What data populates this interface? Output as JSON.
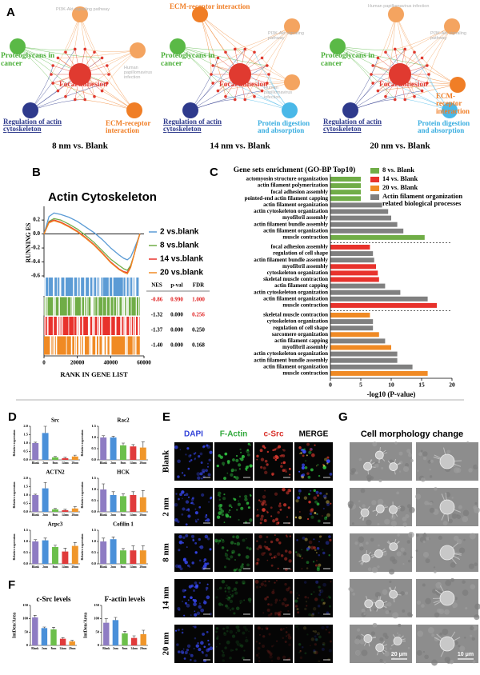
{
  "panel_labels": [
    "A",
    "B",
    "C",
    "D",
    "E",
    "F",
    "G"
  ],
  "network_panels": [
    {
      "caption": "8 nm vs. Blank",
      "nodes": [
        {
          "label": "PI3K-Akt signaling pathway",
          "color": "#b0b0b0",
          "circle_color": "#f4a460"
        },
        {
          "label": "Proteoglycans in cancer",
          "color": "#4caf3a",
          "circle_color": "#5ab946"
        },
        {
          "label": "Human papillomavirus infection",
          "color": "#b0b0b0",
          "circle_color": "#f4a460"
        },
        {
          "label": "Focal adhesion",
          "color": "#e03a30",
          "circle_color": "#e03a30"
        },
        {
          "label": "Regulation of actin cytoskeleton",
          "color": "#2e3a8c",
          "circle_color": "#2e3a8c"
        },
        {
          "label": "ECM-receptor interaction",
          "color": "#f07e26",
          "circle_color": "#f07e26"
        }
      ]
    },
    {
      "caption": "14 nm vs. Blank",
      "nodes": [
        {
          "label": "ECM-receptor interaction",
          "color": "#f07e26",
          "circle_color": "#f07e26"
        },
        {
          "label": "PI3K-Akt signaling pathway",
          "color": "#b0b0b0",
          "circle_color": "#f4a460"
        },
        {
          "label": "Proteoglycans in cancer",
          "color": "#4caf3a",
          "circle_color": "#5ab946"
        },
        {
          "label": "Focal adhesion",
          "color": "#e03a30",
          "circle_color": "#e03a30"
        },
        {
          "label": "Human papillomavirus infection",
          "color": "#b0b0b0",
          "circle_color": "#f4a460"
        },
        {
          "label": "Regulation of actin cytoskeleton",
          "color": "#2e3a8c",
          "circle_color": "#2e3a8c"
        },
        {
          "label": "Protein digestion and absorption",
          "color": "#3aaee0",
          "circle_color": "#4ab8e8"
        }
      ]
    },
    {
      "caption": "20 nm vs. Blank",
      "nodes": [
        {
          "label": "Human papillomavirus infection",
          "color": "#b0b0b0",
          "circle_color": "#f4a460"
        },
        {
          "label": "PI3K-Akt signaling pathway",
          "color": "#b0b0b0",
          "circle_color": "#f4a460"
        },
        {
          "label": "Proteoglycans in cancer",
          "color": "#4caf3a",
          "circle_color": "#5ab946"
        },
        {
          "label": "Focal adhesion",
          "color": "#e03a30",
          "circle_color": "#e03a30"
        },
        {
          "label": "ECM-receptor interaction",
          "color": "#f07e26",
          "circle_color": "#f07e26"
        },
        {
          "label": "Regulation of actin cytoskeleton",
          "color": "#2e3a8c",
          "circle_color": "#2e3a8c"
        },
        {
          "label": "Protein digestion and absorption",
          "color": "#3aaee0",
          "circle_color": "#4ab8e8"
        }
      ]
    }
  ],
  "chart_data": [
    {
      "type": "line",
      "title": "Actin Cytoskeleton",
      "y_label": "RUNNING ES",
      "x_label": "RANK IN GENE LIST",
      "x": [
        0,
        3000,
        6000,
        10000,
        15000,
        20000,
        25000,
        30000,
        35000,
        40000,
        45000,
        48000,
        50000,
        52000,
        54000,
        56000,
        57500
      ],
      "series": [
        {
          "name": "2 vs.blank",
          "color": "#5b9bd5",
          "values": [
            0,
            0.25,
            0.3,
            0.28,
            0.24,
            0.18,
            0.1,
            0.02,
            -0.08,
            -0.2,
            -0.3,
            -0.35,
            -0.37,
            -0.33,
            -0.22,
            -0.1,
            0
          ]
        },
        {
          "name": "8 vs.blank",
          "color": "#70ad47",
          "values": [
            0,
            0.18,
            0.22,
            0.2,
            0.14,
            0.07,
            -0.02,
            -0.12,
            -0.24,
            -0.36,
            -0.45,
            -0.5,
            -0.52,
            -0.45,
            -0.3,
            -0.12,
            0
          ]
        },
        {
          "name": "14 vs.blank",
          "color": "#e8322c",
          "values": [
            0,
            0.17,
            0.2,
            0.17,
            0.11,
            0.04,
            -0.05,
            -0.15,
            -0.27,
            -0.4,
            -0.5,
            -0.54,
            -0.55,
            -0.47,
            -0.3,
            -0.12,
            0
          ]
        },
        {
          "name": "20 vs.blank",
          "color": "#f08a24",
          "values": [
            0,
            0.16,
            0.19,
            0.16,
            0.1,
            0.03,
            -0.06,
            -0.16,
            -0.28,
            -0.41,
            -0.51,
            -0.55,
            -0.57,
            -0.48,
            -0.3,
            -0.12,
            0
          ]
        }
      ],
      "xlim": [
        0,
        60000
      ],
      "xticks": [
        0,
        20000,
        40000,
        60000
      ],
      "ylim": [
        -0.6,
        0.35
      ],
      "yticks": [
        -0.6,
        -0.4,
        -0.2,
        {
          "value": 0,
          "label": "0.0"
        },
        0.2
      ]
    },
    {
      "type": "hbar",
      "title": "Gene sets enrichment (GO-BP Top10)",
      "x_label": "-log10 (P-value)",
      "legend": [
        {
          "name": "8 vs. Blank",
          "color": "#70ad47"
        },
        {
          "name": "14 vs. Blank",
          "color": "#e8322c"
        },
        {
          "name": "20 vs. Blank",
          "color": "#f08a24"
        },
        {
          "name": "Actin filament organization related biological processes",
          "color": "#808080"
        }
      ],
      "categories": [
        "actomyosin structure organization",
        "actin filament polymerization",
        "focal adhesion assembly",
        "pointed-end actin filament capping",
        "actin filament organization",
        "actin cytoskeleton organization",
        "myofibril assembly",
        "actin filament bundle assembly",
        "actin filament organization",
        "muscle contraction",
        "focal adhesion assembly",
        "regulation of cell shape",
        "actin filament bundle assembly",
        "myofibril assembly",
        "cytoskeleton organization",
        "skeletal muscle contraction",
        "actin filament capping",
        "actin cytoskeleton organization",
        "actin filament organization",
        "muscle contraction",
        "skeletal muscle contraction",
        "cytoskeleton organization",
        "regulation of cell shape",
        "sarcomere organization",
        "actin filament capping",
        "myofibril assembly",
        "actin cytoskeleton organization",
        "actin filament bundle assembly",
        "actin filament organization",
        "muscle contraction"
      ],
      "values": [
        5,
        5,
        5,
        5,
        8.5,
        9.5,
        10,
        11,
        12,
        15.5,
        6.5,
        7,
        7.2,
        7.5,
        7.8,
        8,
        9,
        11.5,
        16,
        17.5,
        6.5,
        7,
        7,
        8,
        9,
        10,
        11,
        11,
        13.5,
        16
      ],
      "colors": [
        "#70ad47",
        "#70ad47",
        "#70ad47",
        "#70ad47",
        "#808080",
        "#808080",
        "#808080",
        "#808080",
        "#808080",
        "#70ad47",
        "#e8322c",
        "#808080",
        "#808080",
        "#e8322c",
        "#e8322c",
        "#e8322c",
        "#808080",
        "#808080",
        "#808080",
        "#e8322c",
        "#f08a24",
        "#808080",
        "#808080",
        "#f08a24",
        "#808080",
        "#f08a24",
        "#808080",
        "#808080",
        "#808080",
        "#f08a24"
      ],
      "xlim": [
        0,
        20
      ],
      "xticks": [
        0,
        5,
        10,
        15,
        20
      ]
    },
    {
      "type": "bar",
      "title": "Src",
      "y_label": "Relative expression",
      "categories": [
        "Blank",
        "2nm",
        "8nm",
        "14nm",
        "20nm"
      ],
      "values": [
        1.0,
        1.6,
        0.15,
        0.1,
        0.2
      ],
      "errors": [
        0.05,
        0.4,
        0.05,
        0.05,
        0.08
      ],
      "colors": [
        "#8e7cc3",
        "#4a90d9",
        "#6cbf4b",
        "#e03b3b",
        "#f0962a"
      ],
      "ylim": [
        0,
        2
      ],
      "yticks": [
        {
          "value": 0,
          "label": "0.0"
        },
        0.5,
        {
          "value": 1,
          "label": "1.0"
        },
        1.5,
        {
          "value": 2,
          "label": "2.0"
        }
      ]
    },
    {
      "type": "bar",
      "title": "Rac2",
      "y_label": "Relative expression",
      "categories": [
        "Blank",
        "2nm",
        "8nm",
        "14nm",
        "20nm"
      ],
      "values": [
        1.0,
        1.0,
        0.65,
        0.6,
        0.55
      ],
      "errors": [
        0.08,
        0.05,
        0.1,
        0.08,
        0.25
      ],
      "colors": [
        "#8e7cc3",
        "#4a90d9",
        "#6cbf4b",
        "#e03b3b",
        "#f0962a"
      ],
      "ylim": [
        0,
        1.5
      ],
      "yticks": [
        {
          "value": 0,
          "label": "0.0"
        },
        0.5,
        {
          "value": 1,
          "label": "1.0"
        },
        1.5
      ]
    },
    {
      "type": "bar",
      "title": "ACTN2",
      "y_label": "Relative expression",
      "categories": [
        "Blank",
        "2nm",
        "8nm",
        "14nm",
        "20nm"
      ],
      "values": [
        1.0,
        1.4,
        0.15,
        0.1,
        0.2
      ],
      "errors": [
        0.05,
        0.35,
        0.05,
        0.05,
        0.1
      ],
      "colors": [
        "#8e7cc3",
        "#4a90d9",
        "#6cbf4b",
        "#e03b3b",
        "#f0962a"
      ],
      "ylim": [
        0,
        2
      ],
      "yticks": [
        {
          "value": 0,
          "label": "0.0"
        },
        0.5,
        {
          "value": 1,
          "label": "1.0"
        },
        1.5,
        {
          "value": 2,
          "label": "2.0"
        }
      ]
    },
    {
      "type": "bar",
      "title": "HCK",
      "y_label": "Relative expression",
      "categories": [
        "Blank",
        "2nm",
        "8nm",
        "14nm",
        "20nm"
      ],
      "values": [
        1.0,
        0.75,
        0.7,
        0.75,
        0.65
      ],
      "errors": [
        0.25,
        0.15,
        0.1,
        0.15,
        0.3
      ],
      "colors": [
        "#8e7cc3",
        "#4a90d9",
        "#6cbf4b",
        "#e03b3b",
        "#f0962a"
      ],
      "ylim": [
        0,
        1.5
      ],
      "yticks": [
        {
          "value": 0,
          "label": "0.0"
        },
        0.5,
        {
          "value": 1,
          "label": "1.0"
        },
        1.5
      ]
    },
    {
      "type": "bar",
      "title": "Arpc3",
      "y_label": "Relative expression",
      "categories": [
        "Blank",
        "2nm",
        "8nm",
        "14nm",
        "20nm"
      ],
      "values": [
        1.0,
        1.05,
        0.75,
        0.55,
        0.8
      ],
      "errors": [
        0.08,
        0.1,
        0.08,
        0.15,
        0.15
      ],
      "colors": [
        "#8e7cc3",
        "#4a90d9",
        "#6cbf4b",
        "#e03b3b",
        "#f0962a"
      ],
      "ylim": [
        0,
        1.5
      ],
      "yticks": [
        {
          "value": 0,
          "label": "0.0"
        },
        0.5,
        {
          "value": 1,
          "label": "1.0"
        },
        1.5
      ]
    },
    {
      "type": "bar",
      "title": "Cofilin 1",
      "y_label": "Relative expression",
      "categories": [
        "Blank",
        "2nm",
        "8nm",
        "14nm",
        "20nm"
      ],
      "values": [
        1.0,
        1.1,
        0.6,
        0.6,
        0.6
      ],
      "errors": [
        0.15,
        0.1,
        0.08,
        0.2,
        0.2
      ],
      "colors": [
        "#8e7cc3",
        "#4a90d9",
        "#6cbf4b",
        "#e03b3b",
        "#f0962a"
      ],
      "ylim": [
        0,
        1.5
      ],
      "yticks": [
        {
          "value": 0,
          "label": "0.0"
        },
        0.5,
        {
          "value": 1,
          "label": "1.0"
        },
        1.5
      ]
    },
    {
      "type": "bar",
      "title": "c-Src levels",
      "y_label": "IntDen/Area",
      "categories": [
        "Blank",
        "2nm",
        "8nm",
        "14nm",
        "20nm"
      ],
      "values": [
        105,
        65,
        60,
        25,
        15
      ],
      "errors": [
        8,
        4,
        8,
        4,
        4
      ],
      "colors": [
        "#8e7cc3",
        "#4a90d9",
        "#6cbf4b",
        "#e03b3b",
        "#f0962a"
      ],
      "ylim": [
        0,
        150
      ],
      "yticks": [
        0,
        50,
        100,
        150
      ]
    },
    {
      "type": "bar",
      "title": "F-actin levels",
      "y_label": "IntDen/Area",
      "categories": [
        "Blank",
        "2nm",
        "8nm",
        "14nm",
        "20nm"
      ],
      "values": [
        85,
        95,
        45,
        28,
        42
      ],
      "errors": [
        15,
        10,
        8,
        8,
        15
      ],
      "colors": [
        "#8e7cc3",
        "#4a90d9",
        "#6cbf4b",
        "#e03b3b",
        "#f0962a"
      ],
      "ylim": [
        0,
        150
      ],
      "yticks": [
        0,
        50,
        100,
        150
      ]
    }
  ],
  "gsea_table": {
    "header": [
      "NES",
      "p-val",
      "FDR"
    ],
    "rows": [
      [
        "-0.86",
        "0.990",
        "1.000"
      ],
      [
        "-1.32",
        "0.000",
        "0.256"
      ],
      [
        "-1.37",
        "0.000",
        "0.250"
      ],
      [
        "-1.40",
        "0.000",
        "0.168"
      ]
    ]
  },
  "image_panel": {
    "columns": [
      {
        "label": "DAPI",
        "color": "#2f3fd8"
      },
      {
        "label": "F-Actin",
        "color": "#2fa83a"
      },
      {
        "label": "c-Src",
        "color": "#d8302a"
      },
      {
        "label": "MERGE",
        "color": "#000000"
      }
    ],
    "rows": [
      "Blank",
      "2 nm",
      "8 nm",
      "14 nm",
      "20 nm"
    ]
  },
  "morphology_panel": {
    "title": "Cell morphology change",
    "scale_bars": [
      "20 μm",
      "10 μm"
    ]
  }
}
